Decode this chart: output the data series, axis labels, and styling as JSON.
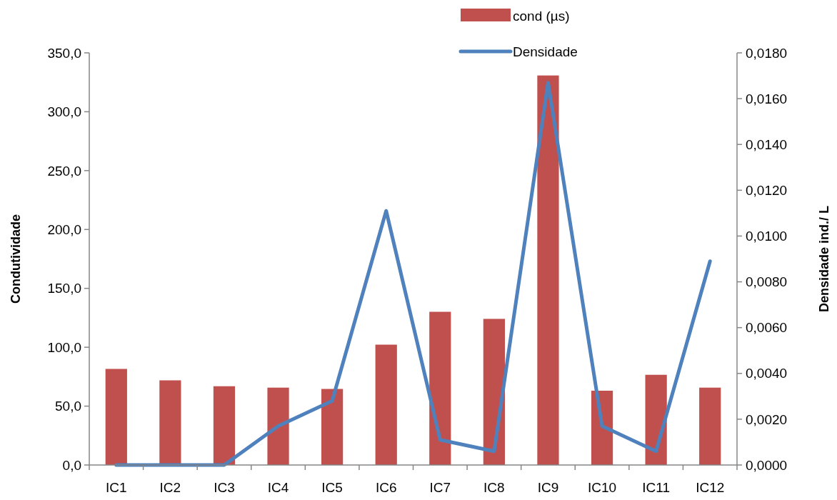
{
  "chart_data": {
    "type": "bar",
    "categories": [
      "IC1",
      "IC2",
      "IC3",
      "IC4",
      "IC5",
      "IC6",
      "IC7",
      "IC8",
      "IC9",
      "IC10",
      "IC11",
      "IC12"
    ],
    "ylabel": "Condutividade",
    "y2label": "Densidade ind./ L",
    "ylim": [
      0,
      350
    ],
    "yticks": [
      {
        "value": 0,
        "label": "0,0"
      },
      {
        "value": 50,
        "label": "50,0"
      },
      {
        "value": 100,
        "label": "100,0"
      },
      {
        "value": 150,
        "label": "150,0"
      },
      {
        "value": 200,
        "label": "200,0"
      },
      {
        "value": 250,
        "label": "250,0"
      },
      {
        "value": 300,
        "label": "300,0"
      },
      {
        "value": 350,
        "label": "350,0"
      }
    ],
    "y2lim": [
      0,
      0.018
    ],
    "y2ticks": [
      {
        "value": 0,
        "label": "0,0000"
      },
      {
        "value": 0.002,
        "label": "0,0020"
      },
      {
        "value": 0.004,
        "label": "0,0040"
      },
      {
        "value": 0.006,
        "label": "0,0060"
      },
      {
        "value": 0.008,
        "label": "0,0080"
      },
      {
        "value": 0.01,
        "label": "0,0100"
      },
      {
        "value": 0.012,
        "label": "0,0120"
      },
      {
        "value": 0.014,
        "label": "0,0140"
      },
      {
        "value": 0.016,
        "label": "0,0160"
      },
      {
        "value": 0.018,
        "label": "0,0180"
      }
    ],
    "legend": "top",
    "grid": false,
    "series": [
      {
        "name": "cond (µs)",
        "color": "#c0504d",
        "values": [
          81.6,
          71.9,
          66.9,
          65.7,
          64.6,
          102.2,
          130.1,
          124.1,
          330.8,
          63.1,
          76.6,
          65.7
        ]
      },
      {
        "name": "Densidade",
        "type": "line",
        "axis": "y2",
        "color": "#4f81bd",
        "values": [
          0,
          0,
          0,
          0.0017,
          0.0028,
          0.0111,
          0.0011,
          0.0006,
          0.0167,
          0.0017,
          0.0006,
          0.0089
        ]
      }
    ]
  }
}
